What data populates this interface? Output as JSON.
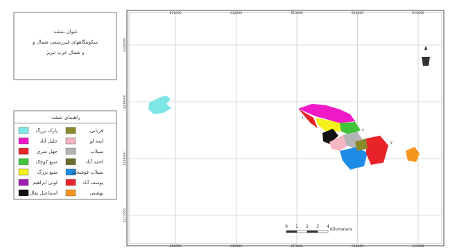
{
  "title_box": {
    "lines": [
      "عنوان نقشه:",
      "سکونتگاههای غیررسمی شمال و",
      "و شمال غرب تبریز"
    ]
  },
  "legend": {
    "title": "راهنمای نقشه:",
    "items": [
      {
        "label": "پارک بزرگ",
        "color": "#7fe6e6"
      },
      {
        "label": "قربانی",
        "color": "#8a8a2a"
      },
      {
        "label": "خلیل آباد",
        "color": "#f019c8"
      },
      {
        "label": "ایده لو",
        "color": "#f4b6c2"
      },
      {
        "label": "چهل متری",
        "color": "#e8232a"
      },
      {
        "label": "سیلاب",
        "color": "#b4b4b4"
      },
      {
        "label": "منبع کوچک",
        "color": "#3fc43a"
      },
      {
        "label": "احمد آباد",
        "color": "#6b6b2a"
      },
      {
        "label": "منبع بزرگ",
        "color": "#f5f01e"
      },
      {
        "label": "سیلاب قوشخانه",
        "color": "#1e8ce6"
      },
      {
        "label": "لوتی ابراهیم",
        "color": "#a01eb4"
      },
      {
        "label": "یوسف آباد",
        "color": "#e8232a"
      },
      {
        "label": "اسماعیل بقال",
        "color": "#111111"
      },
      {
        "label": "بهشتی",
        "color": "#f5961e"
      }
    ]
  },
  "grid": {
    "x_labels": [
      611000,
      612000,
      613000,
      614000,
      615000
    ],
    "y_labels": [
      4220000,
      4219000,
      4218000,
      4217000
    ]
  },
  "map_labels": [
    "۱",
    "۱",
    "۲",
    "۲"
  ],
  "scale_bar": {
    "ticks": [
      "0",
      "1",
      "2",
      "3",
      "4"
    ],
    "unit": "Kilometers"
  }
}
